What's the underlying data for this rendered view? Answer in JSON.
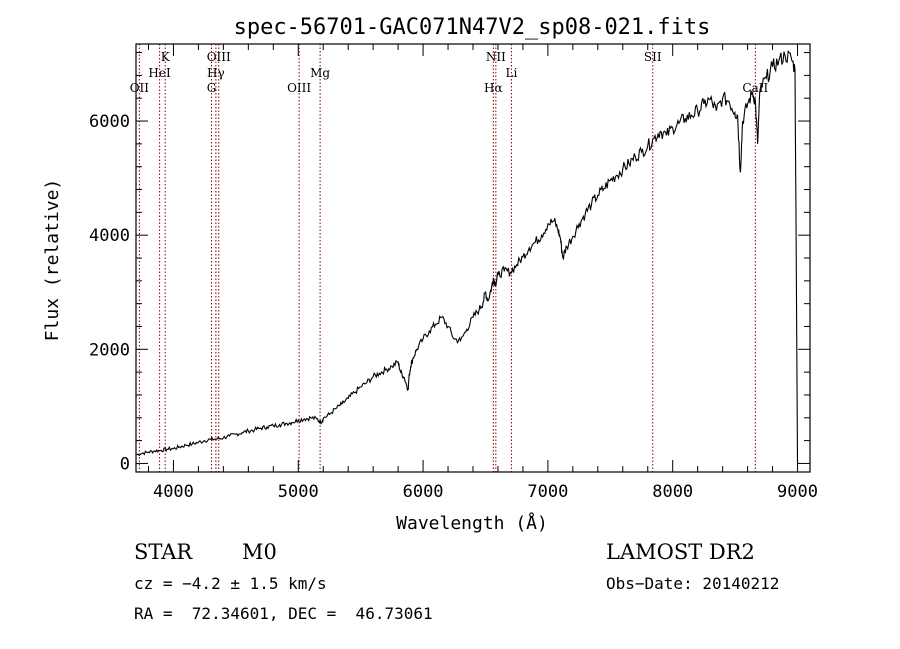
{
  "chart_data": {
    "type": "line",
    "title": "spec-56701-GAC071N47V2_sp08-021.fits",
    "xlabel": "Wavelength (Å)",
    "ylabel": "Flux (relative)",
    "xlim": [
      3700,
      9100
    ],
    "ylim": [
      -150,
      7350
    ],
    "xticks": [
      4000,
      5000,
      6000,
      7000,
      8000,
      9000
    ],
    "yticks": [
      0,
      2000,
      4000,
      6000
    ],
    "line_color": "#000000",
    "marker_color": "#8b0000",
    "series": [
      {
        "x": [
          3700,
          3750,
          3800,
          3850,
          3900,
          3950,
          4000,
          4050,
          4100,
          4150,
          4200,
          4250,
          4300,
          4350,
          4400,
          4450,
          4500,
          4550,
          4600,
          4650,
          4700,
          4750,
          4800,
          4850,
          4900,
          4950,
          5000,
          5050,
          5100,
          5150,
          5180,
          5200,
          5250,
          5300,
          5350,
          5400,
          5450,
          5500,
          5550,
          5600,
          5650,
          5700,
          5750,
          5800,
          5820,
          5850,
          5880,
          5890,
          5900,
          5920,
          5950,
          6000,
          6050,
          6100,
          6150,
          6200,
          6250,
          6300,
          6350,
          6400,
          6450,
          6480,
          6500,
          6520,
          6550,
          6563,
          6580,
          6600,
          6650,
          6700,
          6750,
          6800,
          6850,
          6900,
          6950,
          7000,
          7050,
          7080,
          7100,
          7120,
          7150,
          7200,
          7250,
          7300,
          7350,
          7400,
          7450,
          7500,
          7550,
          7600,
          7650,
          7700,
          7750,
          7800,
          7850,
          7900,
          7950,
          8000,
          8050,
          8100,
          8150,
          8200,
          8250,
          8300,
          8350,
          8400,
          8450,
          8498,
          8520,
          8542,
          8560,
          8600,
          8640,
          8662,
          8680,
          8700,
          8750,
          8800,
          8850,
          8900,
          8950,
          8980,
          9000
        ],
        "y": [
          150,
          180,
          200,
          220,
          230,
          250,
          260,
          290,
          320,
          340,
          370,
          400,
          420,
          430,
          450,
          480,
          510,
          540,
          570,
          590,
          620,
          640,
          660,
          680,
          700,
          720,
          760,
          780,
          800,
          780,
          720,
          790,
          860,
          960,
          1040,
          1140,
          1240,
          1340,
          1420,
          1520,
          1580,
          1640,
          1700,
          1780,
          1600,
          1500,
          1300,
          1560,
          1700,
          1850,
          2000,
          2180,
          2320,
          2440,
          2560,
          2400,
          2180,
          2150,
          2350,
          2560,
          2700,
          2820,
          3000,
          2850,
          3100,
          3250,
          3150,
          3300,
          3380,
          3350,
          3480,
          3620,
          3780,
          3880,
          4000,
          4200,
          4250,
          4100,
          3950,
          3600,
          3800,
          3980,
          4200,
          4380,
          4550,
          4700,
          4820,
          4960,
          5050,
          5160,
          5250,
          5380,
          5460,
          5560,
          5700,
          5820,
          5750,
          5880,
          5960,
          6050,
          6100,
          6180,
          6300,
          6380,
          6180,
          6400,
          6350,
          6150,
          6100,
          5100,
          6000,
          6300,
          6500,
          6350,
          5600,
          6550,
          6750,
          6950,
          7050,
          7150,
          7100,
          6900,
          0
        ]
      }
    ],
    "line_markers": [
      {
        "label": "OII",
        "x": 3727
      },
      {
        "label": "K",
        "x": 3934
      },
      {
        "label": "HeI",
        "x": 3889
      },
      {
        "label": "OIII",
        "x": 4363
      },
      {
        "label": "Hγ",
        "x": 4340
      },
      {
        "label": "G",
        "x": 4305
      },
      {
        "label": "OIII",
        "x": 5007
      },
      {
        "label": "Mg",
        "x": 5175
      },
      {
        "label": "NII",
        "x": 6583
      },
      {
        "label": "Hα",
        "x": 6563
      },
      {
        "label": "Li",
        "x": 6708
      },
      {
        "label": "SII",
        "x": 7840
      },
      {
        "label": "CaII",
        "x": 8662
      }
    ]
  },
  "info": {
    "object_class": "STAR",
    "subclass": "M0",
    "survey": "LAMOST DR2",
    "cz": "cz = −4.2 ± 1.5 km/s",
    "obs_date": "Obs−Date: 20140212",
    "coords": "RA =  72.34601, DEC =  46.73061"
  }
}
